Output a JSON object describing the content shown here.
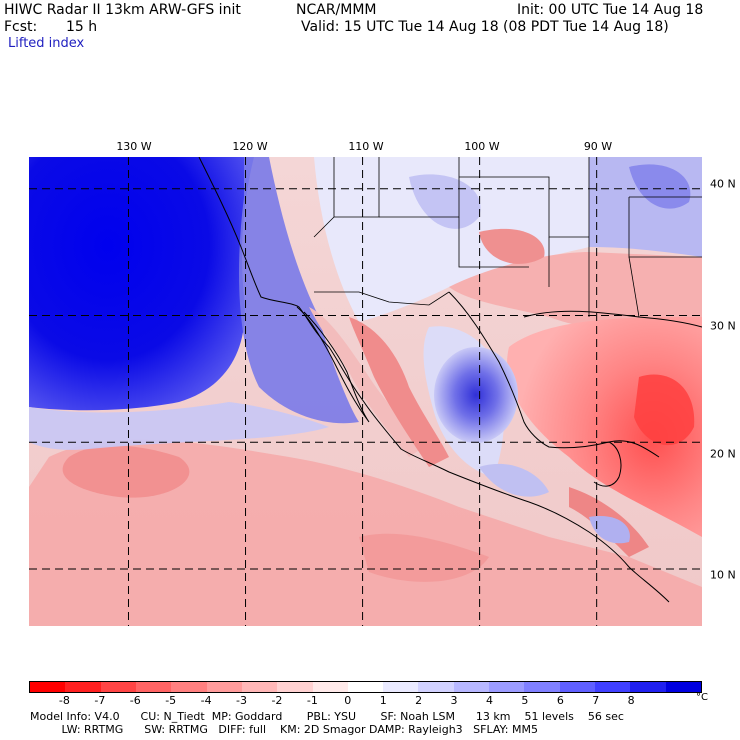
{
  "header": {
    "model_title": "HIWC Radar II 13km ARW-GFS init",
    "org": "NCAR/MMM",
    "init": "Init: 00 UTC Tue 14 Aug 18",
    "fcst_label": "Fcst:",
    "fcst_value": "15 h",
    "valid": "Valid: 15 UTC Tue 14 Aug 18 (08 PDT Tue 14 Aug 18)",
    "field": "Lifted index"
  },
  "map": {
    "lon_labels": [
      "130 W",
      "120 W",
      "110 W",
      "100 W",
      "90 W"
    ],
    "lon_values": [
      -130,
      -120,
      -110,
      -100,
      -90
    ],
    "lat_labels": [
      "40 N",
      "30 N",
      "20 N",
      "10 N"
    ],
    "lat_values": [
      40,
      30,
      20,
      10
    ],
    "extent": {
      "west": -138.5,
      "east": -81,
      "south": 5.5,
      "north": 42.5
    }
  },
  "colorbar": {
    "ticks": [
      "-8",
      "-7",
      "-6",
      "-5",
      "-4",
      "-3",
      "-2",
      "-1",
      "0",
      "1",
      "2",
      "3",
      "4",
      "5",
      "6",
      "7",
      "8"
    ],
    "unit": "°C",
    "colors": [
      "#ff0000",
      "#ff2020",
      "#ff4545",
      "#ff6464",
      "#ff8080",
      "#ff9c9c",
      "#ffb7b7",
      "#ffd2d2",
      "#ffeaea",
      "#ffffff",
      "#eaeaff",
      "#d2d2ff",
      "#b7b7ff",
      "#9c9cff",
      "#8080ff",
      "#6060ff",
      "#4040ff",
      "#2020f0",
      "#0000e0"
    ]
  },
  "footer": {
    "line1": "Model Info: V4.0      CU: N_Tiedt  MP: Goddard       PBL: YSU       SF: Noah LSM      13 km    51 levels    56 sec",
    "line2": "         LW: RRTMG      SW: RRTMG   DIFF: full    KM: 2D Smagor DAMP: Rayleigh3   SFLAY: MM5"
  }
}
